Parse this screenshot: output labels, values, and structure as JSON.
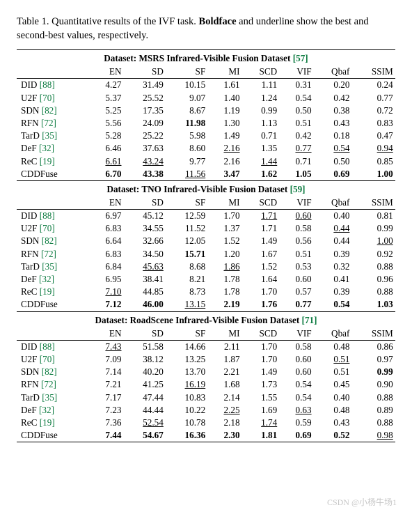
{
  "caption": {
    "prefix": "Table 1. Quantitative results of the IVF task. ",
    "boldword": "Boldface",
    "suffix": " and underline show the best and second-best values, respectively."
  },
  "metrics": [
    "EN",
    "SD",
    "SF",
    "MI",
    "SCD",
    "VIF",
    "Qbaf",
    "SSIM"
  ],
  "ref_color": "#0b7a3f",
  "font_family": "Times New Roman",
  "watermark": "CSDN @小杨牛场1",
  "blocks": [
    {
      "dataset_label": "Dataset: MSRS Infrared-Visible Fusion Dataset",
      "dataset_ref": "57",
      "rows": [
        {
          "method": "DID",
          "ref": "88",
          "vals": [
            {
              "v": "4.27"
            },
            {
              "v": "31.49"
            },
            {
              "v": "10.15"
            },
            {
              "v": "1.61"
            },
            {
              "v": "1.11"
            },
            {
              "v": "0.31"
            },
            {
              "v": "0.20"
            },
            {
              "v": "0.24"
            }
          ]
        },
        {
          "method": "U2F",
          "ref": "70",
          "vals": [
            {
              "v": "5.37"
            },
            {
              "v": "25.52"
            },
            {
              "v": "9.07"
            },
            {
              "v": "1.40"
            },
            {
              "v": "1.24"
            },
            {
              "v": "0.54"
            },
            {
              "v": "0.42"
            },
            {
              "v": "0.77"
            }
          ]
        },
        {
          "method": "SDN",
          "ref": "82",
          "vals": [
            {
              "v": "5.25"
            },
            {
              "v": "17.35"
            },
            {
              "v": "8.67"
            },
            {
              "v": "1.19"
            },
            {
              "v": "0.99"
            },
            {
              "v": "0.50"
            },
            {
              "v": "0.38"
            },
            {
              "v": "0.72"
            }
          ]
        },
        {
          "method": "RFN",
          "ref": "72",
          "vals": [
            {
              "v": "5.56"
            },
            {
              "v": "24.09"
            },
            {
              "v": "11.98",
              "b": true
            },
            {
              "v": "1.30"
            },
            {
              "v": "1.13"
            },
            {
              "v": "0.51"
            },
            {
              "v": "0.43"
            },
            {
              "v": "0.83"
            }
          ]
        },
        {
          "method": "TarD",
          "ref": "35",
          "vals": [
            {
              "v": "5.28"
            },
            {
              "v": "25.22"
            },
            {
              "v": "5.98"
            },
            {
              "v": "1.49"
            },
            {
              "v": "0.71"
            },
            {
              "v": "0.42"
            },
            {
              "v": "0.18"
            },
            {
              "v": "0.47"
            }
          ]
        },
        {
          "method": "DeF",
          "ref": "32",
          "vals": [
            {
              "v": "6.46"
            },
            {
              "v": "37.63"
            },
            {
              "v": "8.60"
            },
            {
              "v": "2.16",
              "u": true
            },
            {
              "v": "1.35"
            },
            {
              "v": "0.77",
              "u": true
            },
            {
              "v": "0.54",
              "u": true
            },
            {
              "v": "0.94",
              "u": true
            }
          ]
        },
        {
          "method": "ReC",
          "ref": "19",
          "vals": [
            {
              "v": "6.61",
              "u": true
            },
            {
              "v": "43.24",
              "u": true
            },
            {
              "v": "9.77"
            },
            {
              "v": "2.16"
            },
            {
              "v": "1.44",
              "u": true
            },
            {
              "v": "0.71"
            },
            {
              "v": "0.50"
            },
            {
              "v": "0.85"
            }
          ]
        },
        {
          "method": "CDDFuse",
          "vals": [
            {
              "v": "6.70",
              "b": true
            },
            {
              "v": "43.38",
              "b": true
            },
            {
              "v": "11.56",
              "u": true
            },
            {
              "v": "3.47",
              "b": true
            },
            {
              "v": "1.62",
              "b": true
            },
            {
              "v": "1.05",
              "b": true
            },
            {
              "v": "0.69",
              "b": true
            },
            {
              "v": "1.00",
              "b": true
            }
          ]
        }
      ]
    },
    {
      "dataset_label": "Dataset: TNO Infrared-Visible Fusion Dataset",
      "dataset_ref": "59",
      "rows": [
        {
          "method": "DID",
          "ref": "88",
          "vals": [
            {
              "v": "6.97"
            },
            {
              "v": "45.12"
            },
            {
              "v": "12.59"
            },
            {
              "v": "1.70"
            },
            {
              "v": "1.71",
              "u": true
            },
            {
              "v": "0.60",
              "u": true
            },
            {
              "v": "0.40"
            },
            {
              "v": "0.81"
            }
          ]
        },
        {
          "method": "U2F",
          "ref": "70",
          "vals": [
            {
              "v": "6.83"
            },
            {
              "v": "34.55"
            },
            {
              "v": "11.52"
            },
            {
              "v": "1.37"
            },
            {
              "v": "1.71"
            },
            {
              "v": "0.58"
            },
            {
              "v": "0.44",
              "u": true
            },
            {
              "v": "0.99"
            }
          ]
        },
        {
          "method": "SDN",
          "ref": "82",
          "vals": [
            {
              "v": "6.64"
            },
            {
              "v": "32.66"
            },
            {
              "v": "12.05"
            },
            {
              "v": "1.52"
            },
            {
              "v": "1.49"
            },
            {
              "v": "0.56"
            },
            {
              "v": "0.44"
            },
            {
              "v": "1.00",
              "u": true
            }
          ]
        },
        {
          "method": "RFN",
          "ref": "72",
          "vals": [
            {
              "v": "6.83"
            },
            {
              "v": "34.50"
            },
            {
              "v": "15.71",
              "b": true
            },
            {
              "v": "1.20"
            },
            {
              "v": "1.67"
            },
            {
              "v": "0.51"
            },
            {
              "v": "0.39"
            },
            {
              "v": "0.92"
            }
          ]
        },
        {
          "method": "TarD",
          "ref": "35",
          "vals": [
            {
              "v": "6.84"
            },
            {
              "v": "45.63",
              "u": true
            },
            {
              "v": "8.68"
            },
            {
              "v": "1.86",
              "u": true
            },
            {
              "v": "1.52"
            },
            {
              "v": "0.53"
            },
            {
              "v": "0.32"
            },
            {
              "v": "0.88"
            }
          ]
        },
        {
          "method": "DeF",
          "ref": "32",
          "vals": [
            {
              "v": "6.95"
            },
            {
              "v": "38.41"
            },
            {
              "v": "8.21"
            },
            {
              "v": "1.78"
            },
            {
              "v": "1.64"
            },
            {
              "v": "0.60"
            },
            {
              "v": "0.41"
            },
            {
              "v": "0.96"
            }
          ]
        },
        {
          "method": "ReC",
          "ref": "19",
          "vals": [
            {
              "v": "7.10",
              "u": true
            },
            {
              "v": "44.85"
            },
            {
              "v": "8.73"
            },
            {
              "v": "1.78"
            },
            {
              "v": "1.70"
            },
            {
              "v": "0.57"
            },
            {
              "v": "0.39"
            },
            {
              "v": "0.88"
            }
          ]
        },
        {
          "method": "CDDFuse",
          "vals": [
            {
              "v": "7.12",
              "b": true
            },
            {
              "v": "46.00",
              "b": true
            },
            {
              "v": "13.15",
              "u": true
            },
            {
              "v": "2.19",
              "b": true
            },
            {
              "v": "1.76",
              "b": true
            },
            {
              "v": "0.77",
              "b": true
            },
            {
              "v": "0.54",
              "b": true
            },
            {
              "v": "1.03",
              "b": true
            }
          ]
        }
      ]
    },
    {
      "dataset_label": "Dataset: RoadScene Infrared-Visible Fusion Dataset",
      "dataset_ref": "71",
      "rows": [
        {
          "method": "DID",
          "ref": "88",
          "vals": [
            {
              "v": "7.43",
              "u": true
            },
            {
              "v": "51.58"
            },
            {
              "v": "14.66"
            },
            {
              "v": "2.11"
            },
            {
              "v": "1.70"
            },
            {
              "v": "0.58"
            },
            {
              "v": "0.48"
            },
            {
              "v": "0.86"
            }
          ]
        },
        {
          "method": "U2F",
          "ref": "70",
          "vals": [
            {
              "v": "7.09"
            },
            {
              "v": "38.12"
            },
            {
              "v": "13.25"
            },
            {
              "v": "1.87"
            },
            {
              "v": "1.70"
            },
            {
              "v": "0.60"
            },
            {
              "v": "0.51",
              "u": true
            },
            {
              "v": "0.97"
            }
          ]
        },
        {
          "method": "SDN",
          "ref": "82",
          "vals": [
            {
              "v": "7.14"
            },
            {
              "v": "40.20"
            },
            {
              "v": "13.70"
            },
            {
              "v": "2.21"
            },
            {
              "v": "1.49"
            },
            {
              "v": "0.60"
            },
            {
              "v": "0.51"
            },
            {
              "v": "0.99",
              "b": true
            }
          ]
        },
        {
          "method": "RFN",
          "ref": "72",
          "vals": [
            {
              "v": "7.21"
            },
            {
              "v": "41.25"
            },
            {
              "v": "16.19",
              "u": true
            },
            {
              "v": "1.68"
            },
            {
              "v": "1.73"
            },
            {
              "v": "0.54"
            },
            {
              "v": "0.45"
            },
            {
              "v": "0.90"
            }
          ]
        },
        {
          "method": "TarD",
          "ref": "35",
          "vals": [
            {
              "v": "7.17"
            },
            {
              "v": "47.44"
            },
            {
              "v": "10.83"
            },
            {
              "v": "2.14"
            },
            {
              "v": "1.55"
            },
            {
              "v": "0.54"
            },
            {
              "v": "0.40"
            },
            {
              "v": "0.88"
            }
          ]
        },
        {
          "method": "DeF",
          "ref": "32",
          "vals": [
            {
              "v": "7.23"
            },
            {
              "v": "44.44"
            },
            {
              "v": "10.22"
            },
            {
              "v": "2.25",
              "u": true
            },
            {
              "v": "1.69"
            },
            {
              "v": "0.63",
              "u": true
            },
            {
              "v": "0.48"
            },
            {
              "v": "0.89"
            }
          ]
        },
        {
          "method": "ReC",
          "ref": "19",
          "vals": [
            {
              "v": "7.36"
            },
            {
              "v": "52.54",
              "u": true
            },
            {
              "v": "10.78"
            },
            {
              "v": "2.18"
            },
            {
              "v": "1.74",
              "u": true
            },
            {
              "v": "0.59"
            },
            {
              "v": "0.43"
            },
            {
              "v": "0.88"
            }
          ]
        },
        {
          "method": "CDDFuse",
          "vals": [
            {
              "v": "7.44",
              "b": true
            },
            {
              "v": "54.67",
              "b": true
            },
            {
              "v": "16.36",
              "b": true
            },
            {
              "v": "2.30",
              "b": true
            },
            {
              "v": "1.81",
              "b": true
            },
            {
              "v": "0.69",
              "b": true
            },
            {
              "v": "0.52",
              "b": true
            },
            {
              "v": "0.98",
              "u": true
            }
          ]
        }
      ]
    }
  ]
}
